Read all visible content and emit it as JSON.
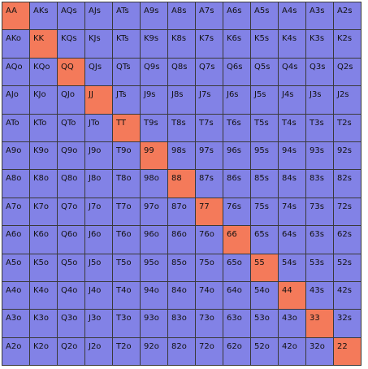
{
  "colors": {
    "default": "#8282e6",
    "pair": "#f47a5a"
  },
  "rows": [
    [
      "AA",
      "AKs",
      "AQs",
      "AJs",
      "ATs",
      "A9s",
      "A8s",
      "A7s",
      "A6s",
      "A5s",
      "A4s",
      "A3s",
      "A2s"
    ],
    [
      "AKo",
      "KK",
      "KQs",
      "KJs",
      "KTs",
      "K9s",
      "K8s",
      "K7s",
      "K6s",
      "K5s",
      "K4s",
      "K3s",
      "K2s"
    ],
    [
      "AQo",
      "KQo",
      "QQ",
      "QJs",
      "QTs",
      "Q9s",
      "Q8s",
      "Q7s",
      "Q6s",
      "Q5s",
      "Q4s",
      "Q3s",
      "Q2s"
    ],
    [
      "AJo",
      "KJo",
      "QJo",
      "JJ",
      "JTs",
      "J9s",
      "J8s",
      "J7s",
      "J6s",
      "J5s",
      "J4s",
      "J3s",
      "J2s"
    ],
    [
      "ATo",
      "KTo",
      "QTo",
      "JTo",
      "TT",
      "T9s",
      "T8s",
      "T7s",
      "T6s",
      "T5s",
      "T4s",
      "T3s",
      "T2s"
    ],
    [
      "A9o",
      "K9o",
      "Q9o",
      "J9o",
      "T9o",
      "99",
      "98s",
      "97s",
      "96s",
      "95s",
      "94s",
      "93s",
      "92s"
    ],
    [
      "A8o",
      "K8o",
      "Q8o",
      "J8o",
      "T8o",
      "98o",
      "88",
      "87s",
      "86s",
      "85s",
      "84s",
      "83s",
      "82s"
    ],
    [
      "A7o",
      "K7o",
      "Q7o",
      "J7o",
      "T7o",
      "97o",
      "87o",
      "77",
      "76s",
      "75s",
      "74s",
      "73s",
      "72s"
    ],
    [
      "A6o",
      "K6o",
      "Q6o",
      "J6o",
      "T6o",
      "96o",
      "86o",
      "76o",
      "66",
      "65s",
      "64s",
      "63s",
      "62s"
    ],
    [
      "A5o",
      "K5o",
      "Q5o",
      "J5o",
      "T5o",
      "95o",
      "85o",
      "75o",
      "65o",
      "55",
      "54s",
      "53s",
      "52s"
    ],
    [
      "A4o",
      "K4o",
      "Q4o",
      "J4o",
      "T4o",
      "94o",
      "84o",
      "74o",
      "64o",
      "54o",
      "44",
      "43s",
      "42s"
    ],
    [
      "A3o",
      "K3o",
      "Q3o",
      "J3o",
      "T3o",
      "93o",
      "83o",
      "73o",
      "63o",
      "53o",
      "43o",
      "33",
      "32s"
    ],
    [
      "A2o",
      "K2o",
      "Q2o",
      "J2o",
      "T2o",
      "92o",
      "82o",
      "72o",
      "62o",
      "52o",
      "42o",
      "32o",
      "22"
    ]
  ]
}
